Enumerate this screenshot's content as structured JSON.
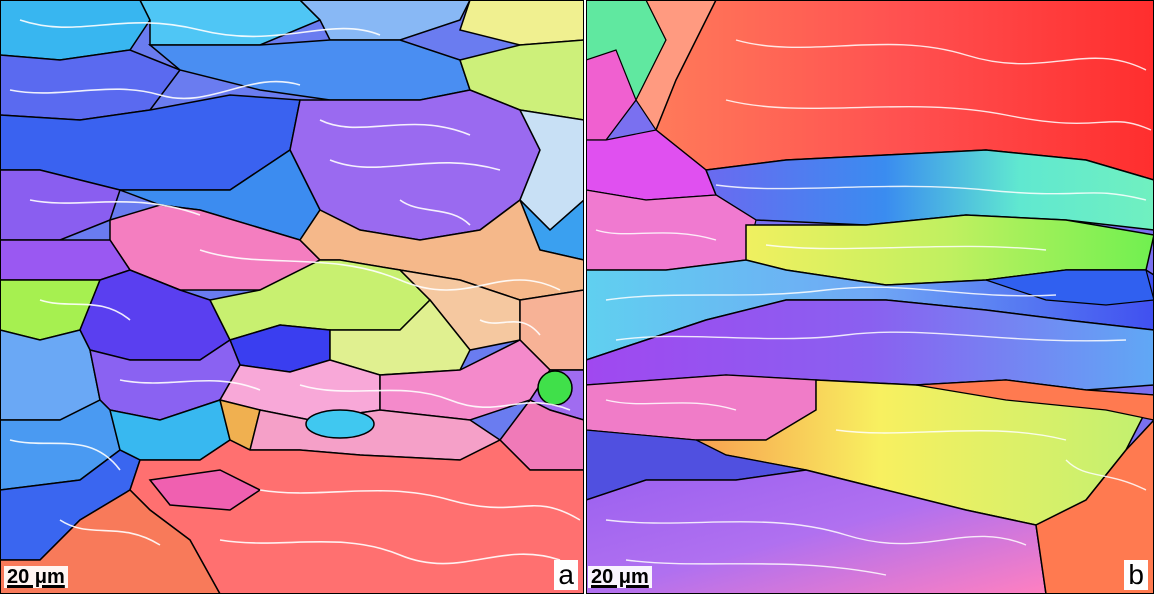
{
  "figure": {
    "panels": [
      {
        "id": "a",
        "label": "a",
        "scale_bar": "20 μm",
        "description_colors": [
          "#3aa0f0",
          "#5a3ff0",
          "#8a5cf0",
          "#f07ab8",
          "#b6f050",
          "#ff6a6a",
          "#7ee0f0",
          "#44e050"
        ]
      },
      {
        "id": "b",
        "label": "b",
        "scale_bar": "20 μm",
        "description_colors": [
          "#ff3c3c",
          "#ff9a3a",
          "#4aa0ff",
          "#60f0c0",
          "#c0f060",
          "#a050f0",
          "#ff50d0",
          "#f8f850"
        ]
      }
    ]
  }
}
